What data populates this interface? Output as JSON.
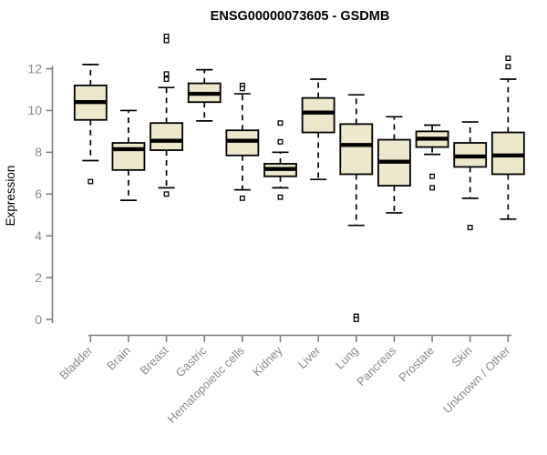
{
  "title": "ENSG00000073605 - GSDMB",
  "chart_data": {
    "type": "box",
    "title": "ENSG00000073605 - GSDMB",
    "xlabel": "",
    "ylabel": "Expression",
    "ylim": [
      0,
      12
    ],
    "yticks": [
      0,
      2,
      4,
      6,
      8,
      10,
      12
    ],
    "grid": false,
    "legend": false,
    "categories": [
      "Bladder",
      "Brain",
      "Breast",
      "Gastric",
      "Hematopoietic cells",
      "Kidney",
      "Liver",
      "Lung",
      "Pancreas",
      "Prostate",
      "Skin",
      "Unknown / Other"
    ],
    "boxes": [
      {
        "category": "Bladder",
        "whisker_low": 7.6,
        "q1": 9.55,
        "median": 10.4,
        "q3": 11.2,
        "whisker_high": 12.2,
        "outliers": [
          6.6
        ]
      },
      {
        "category": "Brain",
        "whisker_low": 5.7,
        "q1": 7.15,
        "median": 8.15,
        "q3": 8.45,
        "whisker_high": 10.0,
        "outliers": []
      },
      {
        "category": "Breast",
        "whisker_low": 6.3,
        "q1": 8.1,
        "median": 8.55,
        "q3": 9.4,
        "whisker_high": 11.1,
        "outliers": [
          13.55,
          13.35,
          11.75,
          11.5,
          6.0
        ]
      },
      {
        "category": "Gastric",
        "whisker_low": 9.5,
        "q1": 10.4,
        "median": 10.8,
        "q3": 11.3,
        "whisker_high": 11.95,
        "outliers": []
      },
      {
        "category": "Hematopoietic cells",
        "whisker_low": 6.2,
        "q1": 7.85,
        "median": 8.55,
        "q3": 9.05,
        "whisker_high": 10.8,
        "outliers": [
          11.2,
          11.05,
          5.8
        ]
      },
      {
        "category": "Kidney",
        "whisker_low": 6.3,
        "q1": 6.85,
        "median": 7.2,
        "q3": 7.45,
        "whisker_high": 8.0,
        "outliers": [
          9.4,
          8.5,
          5.85
        ]
      },
      {
        "category": "Liver",
        "whisker_low": 6.7,
        "q1": 8.95,
        "median": 9.9,
        "q3": 10.6,
        "whisker_high": 11.5,
        "outliers": []
      },
      {
        "category": "Lung",
        "whisker_low": 4.5,
        "q1": 6.95,
        "median": 8.35,
        "q3": 9.35,
        "whisker_high": 10.75,
        "outliers": [
          0.15,
          0.0
        ]
      },
      {
        "category": "Pancreas",
        "whisker_low": 5.1,
        "q1": 6.4,
        "median": 7.55,
        "q3": 8.6,
        "whisker_high": 9.7,
        "outliers": []
      },
      {
        "category": "Prostate",
        "whisker_low": 7.9,
        "q1": 8.25,
        "median": 8.65,
        "q3": 9.0,
        "whisker_high": 9.3,
        "outliers": [
          6.85,
          6.3
        ]
      },
      {
        "category": "Skin",
        "whisker_low": 5.8,
        "q1": 7.3,
        "median": 7.8,
        "q3": 8.45,
        "whisker_high": 9.45,
        "outliers": [
          4.4
        ]
      },
      {
        "category": "Unknown / Other",
        "whisker_low": 4.8,
        "q1": 6.95,
        "median": 7.85,
        "q3": 8.95,
        "whisker_high": 11.5,
        "outliers": [
          12.5,
          12.1
        ]
      }
    ],
    "style": {
      "box_fill": "#EDE8CC",
      "box_stroke": "#000000",
      "median_color": "#000000",
      "whisker_color": "#000000",
      "outlier_fill": "#FFFFFF",
      "axis_color": "#7E7E7E",
      "tick_label_color": "#8A8A8A",
      "title_color": "#000000",
      "background": "#FFFFFF"
    }
  }
}
